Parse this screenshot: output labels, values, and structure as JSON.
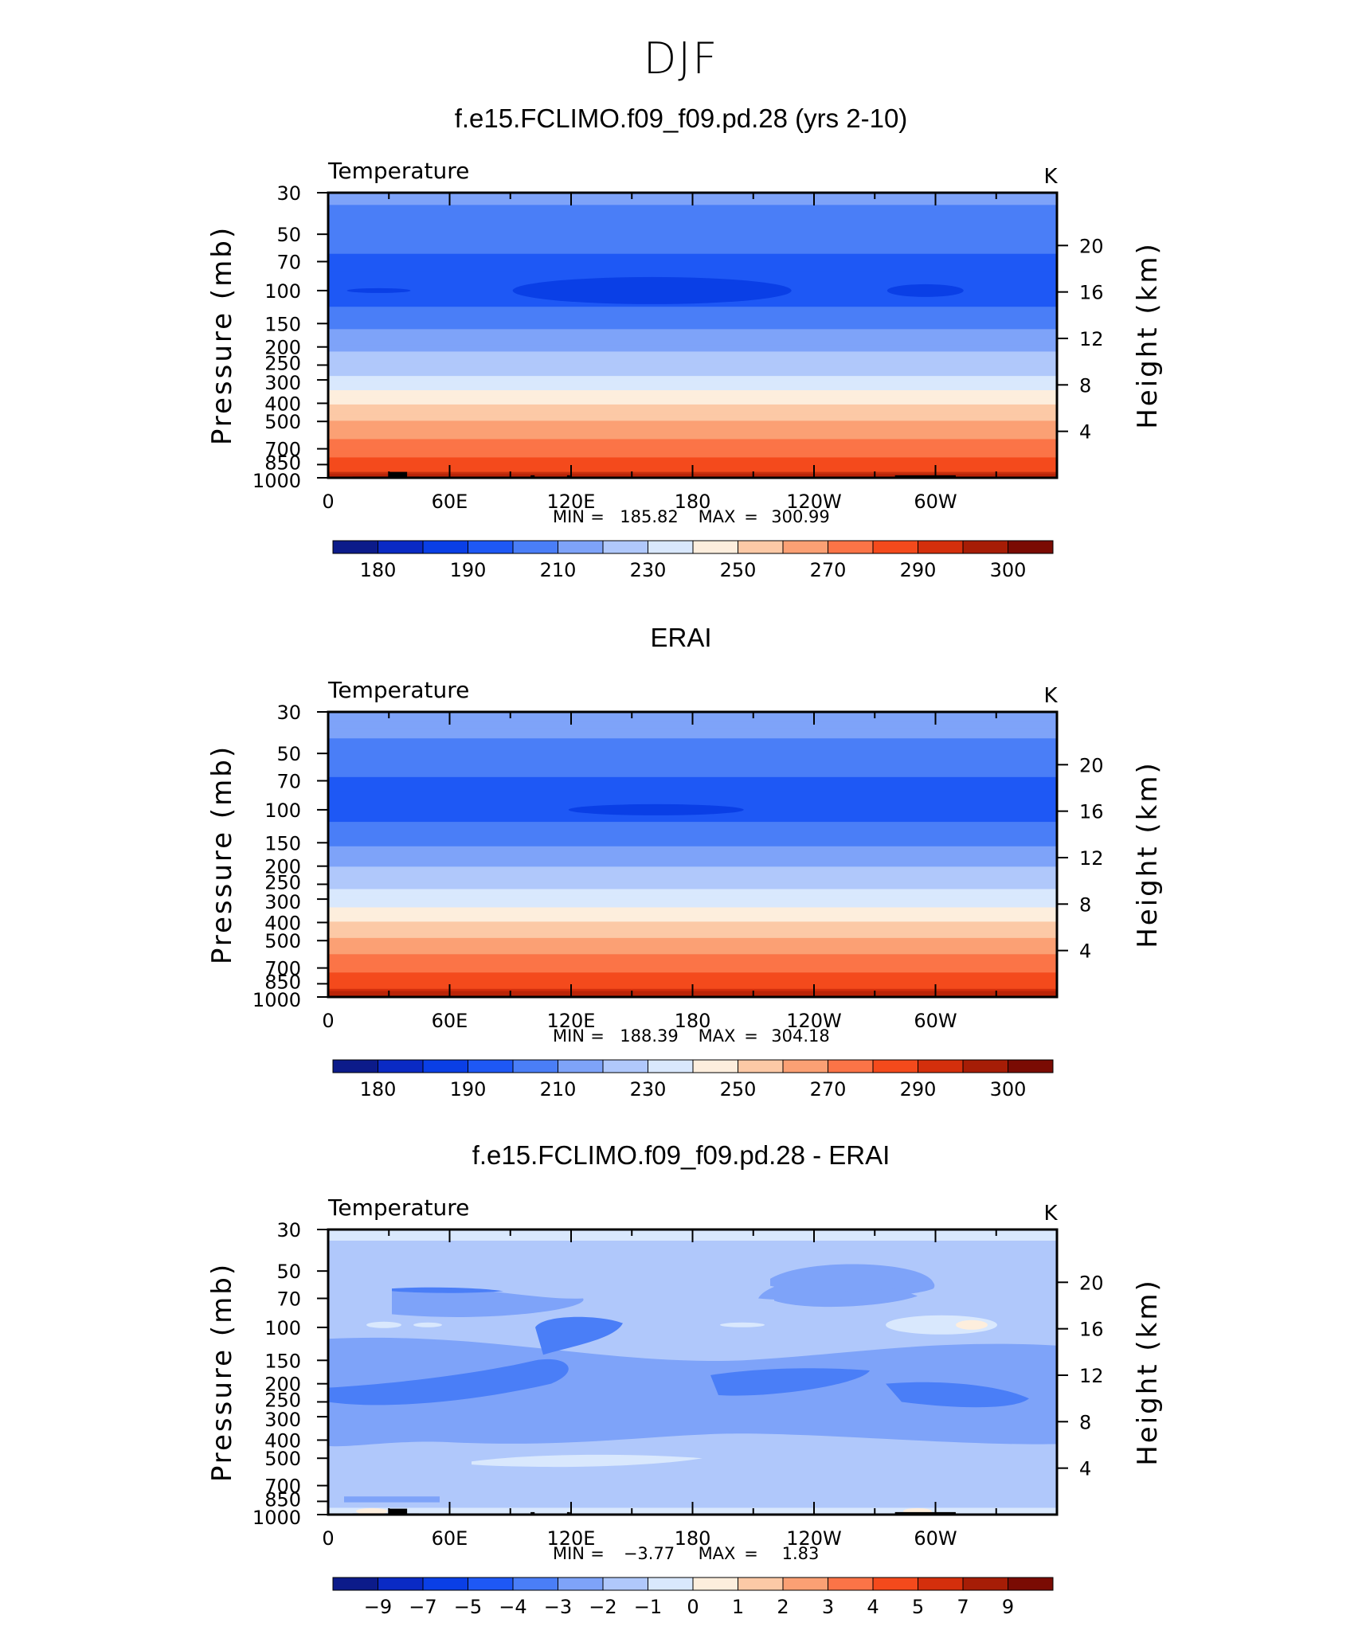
{
  "figure": {
    "title": "DJF"
  },
  "panel_common": {
    "corner_left": "Temperature",
    "corner_right": "K",
    "ylabel_left": "Pressure (mb)",
    "ylabel_right": "Height (km)",
    "pressure_ticks": [
      "30",
      "50",
      "70",
      "100",
      "150",
      "200",
      "250",
      "300",
      "400",
      "500",
      "700",
      "850",
      "1000"
    ],
    "height_ticks": [
      "20",
      "16",
      "12",
      "8",
      "4"
    ],
    "lon_ticks": [
      "0",
      "60E",
      "120E",
      "180",
      "120W",
      "60W"
    ],
    "min_label": "MIN",
    "max_label": "MAX"
  },
  "panels": [
    {
      "title": "f.e15.FCLIMO.f09_f09.pd.28 (yrs 2-10)",
      "min": "185.82",
      "max": "300.99",
      "colorbar_labels": [
        "180",
        "190",
        "210",
        "230",
        "250",
        "270",
        "290",
        "300"
      ]
    },
    {
      "title": "ERAI",
      "min": "188.39",
      "max": "304.18",
      "colorbar_labels": [
        "180",
        "190",
        "210",
        "230",
        "250",
        "270",
        "290",
        "300"
      ]
    },
    {
      "title": "f.e15.FCLIMO.f09_f09.pd.28 - ERAI",
      "min": "−3.77",
      "max": "1.83",
      "colorbar_labels": [
        "−9",
        "−7",
        "−5",
        "−4",
        "−3",
        "−2",
        "−1",
        "0",
        "1",
        "2",
        "3",
        "4",
        "5",
        "7",
        "9"
      ]
    }
  ],
  "colorbar_colors": [
    "#0c1b8a",
    "#0a2ac4",
    "#0a3fe6",
    "#1e58f5",
    "#4a7ef7",
    "#7ea3f9",
    "#b0c8fb",
    "#d9e8fd",
    "#fdeedd",
    "#fcc9a6",
    "#fba074",
    "#fb7447",
    "#f44a1c",
    "#d42f0c",
    "#a61d06",
    "#7a0b03"
  ],
  "chart_data": [
    {
      "type": "heatmap",
      "title": "f.e15.FCLIMO.f09_f09.pd.28 (yrs 2-10)",
      "variable": "Temperature",
      "units": "K",
      "xlabel": "",
      "ylabel": "Pressure (mb)",
      "ylabel_right": "Height (km)",
      "x_ticks": [
        "0",
        "60E",
        "120E",
        "180",
        "120W",
        "60W"
      ],
      "y_ticks": [
        30,
        50,
        70,
        100,
        150,
        200,
        250,
        300,
        400,
        500,
        700,
        850,
        1000
      ],
      "y_scale": "log",
      "ylim": [
        1000,
        30
      ],
      "min": 185.82,
      "max": 300.99,
      "levels": [
        180,
        185,
        190,
        200,
        210,
        220,
        230,
        240,
        250,
        260,
        270,
        280,
        290,
        295,
        300
      ],
      "zonal_profile": {
        "pressure": [
          30,
          50,
          70,
          100,
          150,
          200,
          250,
          300,
          400,
          500,
          700,
          850,
          1000
        ],
        "temperature": [
          212,
          205,
          198,
          193,
          208,
          218,
          225,
          232,
          249,
          260,
          275,
          285,
          292
        ]
      }
    },
    {
      "type": "heatmap",
      "title": "ERAI",
      "variable": "Temperature",
      "units": "K",
      "xlabel": "",
      "ylabel": "Pressure (mb)",
      "ylabel_right": "Height (km)",
      "x_ticks": [
        "0",
        "60E",
        "120E",
        "180",
        "120W",
        "60W"
      ],
      "y_ticks": [
        30,
        50,
        70,
        100,
        150,
        200,
        250,
        300,
        400,
        500,
        700,
        850,
        1000
      ],
      "y_scale": "log",
      "ylim": [
        1000,
        30
      ],
      "min": 188.39,
      "max": 304.18,
      "levels": [
        180,
        185,
        190,
        200,
        210,
        220,
        230,
        240,
        250,
        260,
        270,
        280,
        290,
        295,
        300
      ],
      "zonal_profile": {
        "pressure": [
          30,
          50,
          70,
          100,
          150,
          200,
          250,
          300,
          400,
          500,
          700,
          850,
          1000
        ],
        "temperature": [
          215,
          207,
          199,
          195,
          208,
          220,
          228,
          235,
          251,
          262,
          277,
          287,
          294
        ]
      }
    },
    {
      "type": "heatmap",
      "title": "f.e15.FCLIMO.f09_f09.pd.28 - ERAI",
      "variable": "Temperature",
      "units": "K",
      "xlabel": "",
      "ylabel": "Pressure (mb)",
      "ylabel_right": "Height (km)",
      "x_ticks": [
        "0",
        "60E",
        "120E",
        "180",
        "120W",
        "60W"
      ],
      "y_ticks": [
        30,
        50,
        70,
        100,
        150,
        200,
        250,
        300,
        400,
        500,
        700,
        850,
        1000
      ],
      "y_scale": "log",
      "ylim": [
        1000,
        30
      ],
      "min": -3.77,
      "max": 1.83,
      "levels": [
        -9,
        -7,
        -5,
        -4,
        -3,
        -2,
        -1,
        0,
        1,
        2,
        3,
        4,
        5,
        7,
        9
      ]
    }
  ]
}
